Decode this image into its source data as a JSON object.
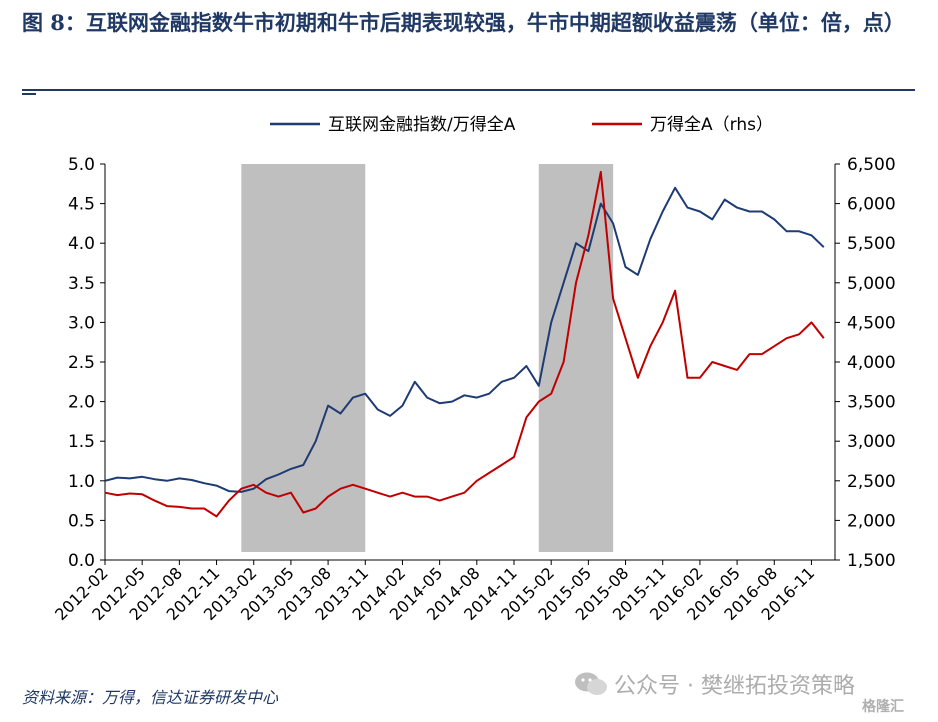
{
  "header": {
    "title": "图 8：互联网金融指数牛市初期和牛市后期表现较强，牛市中期超额收益震荡（单位：倍，点）"
  },
  "footer": {
    "source": "资料来源：万得，信达证券研发中心",
    "watermark": "公众号 · 樊继拓投资策略",
    "brand": "格隆汇"
  },
  "colors": {
    "ratio_series": "#1f3b73",
    "index_series": "#c00000",
    "shade": "#bfbfbf",
    "axis": "#000000"
  },
  "chart_data": {
    "type": "line",
    "legend_position": "top",
    "grid": false,
    "x_ticks": [
      "2012-02",
      "2012-05",
      "2012-08",
      "2012-11",
      "2013-02",
      "2013-05",
      "2013-08",
      "2013-11",
      "2014-02",
      "2014-05",
      "2014-08",
      "2014-11",
      "2015-02",
      "2015-05",
      "2015-08",
      "2015-11",
      "2016-02",
      "2016-05",
      "2016-08",
      "2016-11"
    ],
    "x_range": [
      "2012-02",
      "2016-12"
    ],
    "y_left": {
      "min": 0,
      "max": 5,
      "ticks": [
        "0.0",
        "0.5",
        "1.0",
        "1.5",
        "2.0",
        "2.5",
        "3.0",
        "3.5",
        "4.0",
        "4.5",
        "5.0"
      ]
    },
    "y_right": {
      "min": 1500,
      "max": 6500,
      "ticks": [
        "1,500",
        "2,000",
        "2,500",
        "3,000",
        "3,500",
        "4,000",
        "4,500",
        "5,000",
        "5,500",
        "6,000",
        "6,500"
      ]
    },
    "shaded_periods": [
      {
        "start": "2013-01",
        "end": "2013-11"
      },
      {
        "start": "2015-01",
        "end": "2015-07"
      }
    ],
    "series": [
      {
        "name": "互联网金融指数/万得全A",
        "axis": "left",
        "points": [
          [
            "2012-02",
            1.0
          ],
          [
            "2012-03",
            1.04
          ],
          [
            "2012-04",
            1.03
          ],
          [
            "2012-05",
            1.05
          ],
          [
            "2012-06",
            1.02
          ],
          [
            "2012-07",
            1.0
          ],
          [
            "2012-08",
            1.03
          ],
          [
            "2012-09",
            1.01
          ],
          [
            "2012-10",
            0.97
          ],
          [
            "2012-11",
            0.94
          ],
          [
            "2012-12",
            0.87
          ],
          [
            "2013-01",
            0.86
          ],
          [
            "2013-02",
            0.9
          ],
          [
            "2013-03",
            1.02
          ],
          [
            "2013-04",
            1.08
          ],
          [
            "2013-05",
            1.15
          ],
          [
            "2013-06",
            1.2
          ],
          [
            "2013-07",
            1.5
          ],
          [
            "2013-08",
            1.95
          ],
          [
            "2013-09",
            1.85
          ],
          [
            "2013-10",
            2.05
          ],
          [
            "2013-11",
            2.1
          ],
          [
            "2013-12",
            1.9
          ],
          [
            "2014-01",
            1.82
          ],
          [
            "2014-02",
            1.95
          ],
          [
            "2014-03",
            2.25
          ],
          [
            "2014-04",
            2.05
          ],
          [
            "2014-05",
            1.98
          ],
          [
            "2014-06",
            2.0
          ],
          [
            "2014-07",
            2.08
          ],
          [
            "2014-08",
            2.05
          ],
          [
            "2014-09",
            2.1
          ],
          [
            "2014-10",
            2.25
          ],
          [
            "2014-11",
            2.3
          ],
          [
            "2014-12",
            2.45
          ],
          [
            "2015-01",
            2.2
          ],
          [
            "2015-02",
            3.0
          ],
          [
            "2015-03",
            3.5
          ],
          [
            "2015-04",
            4.0
          ],
          [
            "2015-05",
            3.9
          ],
          [
            "2015-06",
            4.5
          ],
          [
            "2015-07",
            4.25
          ],
          [
            "2015-08",
            3.7
          ],
          [
            "2015-09",
            3.6
          ],
          [
            "2015-10",
            4.05
          ],
          [
            "2015-11",
            4.4
          ],
          [
            "2015-12",
            4.7
          ],
          [
            "2016-01",
            4.45
          ],
          [
            "2016-02",
            4.4
          ],
          [
            "2016-03",
            4.3
          ],
          [
            "2016-04",
            4.55
          ],
          [
            "2016-05",
            4.45
          ],
          [
            "2016-06",
            4.4
          ],
          [
            "2016-07",
            4.4
          ],
          [
            "2016-08",
            4.3
          ],
          [
            "2016-09",
            4.15
          ],
          [
            "2016-10",
            4.15
          ],
          [
            "2016-11",
            4.1
          ],
          [
            "2016-12",
            3.95
          ]
        ]
      },
      {
        "name": "万得全A（rhs）",
        "axis": "right",
        "points": [
          [
            "2012-02",
            2350
          ],
          [
            "2012-03",
            2320
          ],
          [
            "2012-04",
            2340
          ],
          [
            "2012-05",
            2330
          ],
          [
            "2012-06",
            2250
          ],
          [
            "2012-07",
            2180
          ],
          [
            "2012-08",
            2170
          ],
          [
            "2012-09",
            2150
          ],
          [
            "2012-10",
            2150
          ],
          [
            "2012-11",
            2050
          ],
          [
            "2012-12",
            2250
          ],
          [
            "2013-01",
            2400
          ],
          [
            "2013-02",
            2450
          ],
          [
            "2013-03",
            2350
          ],
          [
            "2013-04",
            2300
          ],
          [
            "2013-05",
            2350
          ],
          [
            "2013-06",
            2100
          ],
          [
            "2013-07",
            2150
          ],
          [
            "2013-08",
            2300
          ],
          [
            "2013-09",
            2400
          ],
          [
            "2013-10",
            2450
          ],
          [
            "2013-11",
            2400
          ],
          [
            "2013-12",
            2350
          ],
          [
            "2014-01",
            2300
          ],
          [
            "2014-02",
            2350
          ],
          [
            "2014-03",
            2300
          ],
          [
            "2014-04",
            2300
          ],
          [
            "2014-05",
            2250
          ],
          [
            "2014-06",
            2300
          ],
          [
            "2014-07",
            2350
          ],
          [
            "2014-08",
            2500
          ],
          [
            "2014-09",
            2600
          ],
          [
            "2014-10",
            2700
          ],
          [
            "2014-11",
            2800
          ],
          [
            "2014-12",
            3300
          ],
          [
            "2015-01",
            3500
          ],
          [
            "2015-02",
            3600
          ],
          [
            "2015-03",
            4000
          ],
          [
            "2015-04",
            5000
          ],
          [
            "2015-05",
            5600
          ],
          [
            "2015-06",
            6400
          ],
          [
            "2015-07",
            4800
          ],
          [
            "2015-08",
            4300
          ],
          [
            "2015-09",
            3800
          ],
          [
            "2015-10",
            4200
          ],
          [
            "2015-11",
            4500
          ],
          [
            "2015-12",
            4900
          ],
          [
            "2016-01",
            3800
          ],
          [
            "2016-02",
            3800
          ],
          [
            "2016-03",
            4000
          ],
          [
            "2016-04",
            3950
          ],
          [
            "2016-05",
            3900
          ],
          [
            "2016-06",
            4100
          ],
          [
            "2016-07",
            4100
          ],
          [
            "2016-08",
            4200
          ],
          [
            "2016-09",
            4300
          ],
          [
            "2016-10",
            4350
          ],
          [
            "2016-11",
            4500
          ],
          [
            "2016-12",
            4300
          ]
        ]
      }
    ]
  }
}
